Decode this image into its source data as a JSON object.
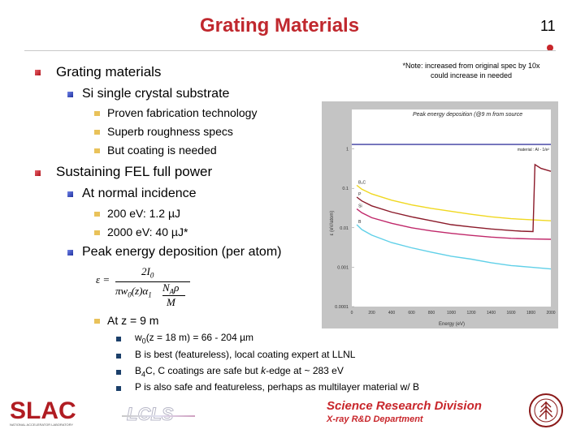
{
  "slide": {
    "title": "Grating Materials",
    "page_number": "11",
    "note_line1": "*Note: increased from original spec by 10x",
    "note_line2": "could increase in needed"
  },
  "bullets": {
    "b1": "Grating materials",
    "b1a": "Si single crystal substrate",
    "b1a_items": [
      "Proven fabrication technology",
      "Superb roughness specs",
      "But coating is needed"
    ],
    "b2": "Sustaining FEL full power",
    "b2a": "At normal incidence",
    "b2a_items": [
      "200 eV: 1.2 µJ",
      "2000 eV: 40 µJ*"
    ],
    "b2b": "Peak energy deposition (per atom)",
    "b2b_item": "At z = 9 m",
    "sub_items": {
      "w0_w": "w",
      "w0_sub": "0",
      "w0_rest": "(z = 18 m) = 66 - 204 µm",
      "b_best": "B is best (featureless), local coating expert at LLNL",
      "b4c_a": "B",
      "b4c_sub": "4",
      "b4c_b": "C, C coatings are safe but ",
      "b4c_k": "k",
      "b4c_c": "-edge at ~ 283 eV",
      "p_safe": "P is also safe and featureless, perhaps as multilayer material w/ B"
    }
  },
  "formula": {
    "lhs": "ε =",
    "num": "2I",
    "num_sub": "0",
    "den_a": "πw",
    "den_sub": "0",
    "den_b": "(z)",
    "alpha": "α",
    "alpha_sub": "1",
    "frac_num": "N",
    "frac_num_sub": "A",
    "rho": "ρ",
    "frac_den": "M"
  },
  "chart_data": {
    "type": "line",
    "title": "Peak energy deposition (@9 m from source",
    "xlabel": "Energy (eV)",
    "ylabel": "ε (eV/atom)",
    "y_scale": "log",
    "xlim": [
      0,
      2000
    ],
    "ylim": [
      0.0001,
      10
    ],
    "x_ticks": [
      "0",
      "200",
      "400",
      "600",
      "800",
      "1000",
      "1200",
      "1400",
      "1600",
      "1800",
      "2000"
    ],
    "y_ticks": [
      "1",
      "0.1",
      "0.01",
      "0.001",
      "0.0001"
    ],
    "threshold_label": "material : Al - 1/e²",
    "threshold_value": 1.3,
    "series": [
      {
        "name": "B₄C",
        "color": "#f0d820",
        "x": [
          50,
          100,
          200,
          400,
          600,
          800,
          1000,
          1200,
          1400,
          1600,
          1800,
          2000
        ],
        "y": [
          0.12,
          0.095,
          0.072,
          0.05,
          0.038,
          0.031,
          0.026,
          0.022,
          0.019,
          0.017,
          0.016,
          0.015
        ]
      },
      {
        "name": "P",
        "color": "#8b1a2a",
        "x": [
          50,
          100,
          200,
          400,
          600,
          800,
          1000,
          1200,
          1400,
          1600,
          1700,
          1820,
          1840,
          1900,
          2000
        ],
        "y": [
          0.06,
          0.048,
          0.036,
          0.025,
          0.019,
          0.015,
          0.012,
          0.0105,
          0.0093,
          0.0085,
          0.0082,
          0.008,
          0.4,
          0.32,
          0.27
        ]
      },
      {
        "name": "Si",
        "color": "#c0286a",
        "x": [
          50,
          100,
          200,
          400,
          600,
          800,
          1000,
          1200,
          1400,
          1600,
          1800,
          2000
        ],
        "y": [
          0.03,
          0.024,
          0.018,
          0.013,
          0.01,
          0.0083,
          0.0072,
          0.0064,
          0.0058,
          0.0054,
          0.0052,
          0.0051
        ]
      },
      {
        "name": "B",
        "color": "#60d0e8",
        "x": [
          50,
          100,
          200,
          400,
          600,
          800,
          1000,
          1200,
          1400,
          1600,
          1800,
          2000
        ],
        "y": [
          0.012,
          0.009,
          0.0065,
          0.0042,
          0.0031,
          0.0024,
          0.0019,
          0.0016,
          0.0013,
          0.0011,
          0.001,
          0.0009
        ]
      }
    ],
    "colors": {
      "panel": "#c4c4c4",
      "plot_bg": "#ffffff",
      "threshold": "#3a3aa0"
    }
  },
  "footer": {
    "slac": "SLAC",
    "slac_sub": "NATIONAL ACCELERATOR LABORATORY",
    "lcls": "LCLS",
    "srd": "Science Research Division",
    "xrd": "X-ray R&D Department"
  }
}
